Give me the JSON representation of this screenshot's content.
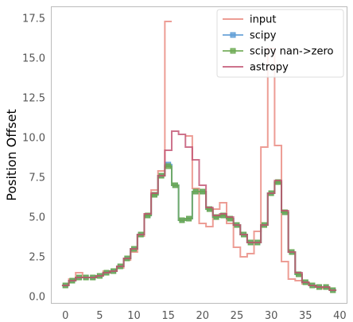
{
  "chart_data": {
    "type": "line",
    "drawstyle": "steps-mid",
    "title": "",
    "xlabel": "",
    "ylabel": "Position Offset",
    "xlim": [
      -2,
      41
    ],
    "ylim": [
      -0.4,
      18.2
    ],
    "xticks": [
      0,
      5,
      10,
      15,
      20,
      25,
      30,
      35,
      40
    ],
    "yticks": [
      0.0,
      2.5,
      5.0,
      7.5,
      10.0,
      12.5,
      15.0,
      17.5
    ],
    "xtick_labels": [
      "0",
      "5",
      "10",
      "15",
      "20",
      "25",
      "30",
      "35",
      "40"
    ],
    "ytick_labels": [
      "0.0",
      "2.5",
      "5.0",
      "7.5",
      "10.0",
      "12.5",
      "15.0",
      "17.5"
    ],
    "grid": false,
    "legend_position": "top-right",
    "series": [
      {
        "name": "input",
        "color": "#e8857a",
        "marker": "none",
        "x": [
          0,
          1,
          2,
          3,
          4,
          5,
          6,
          7,
          8,
          9,
          10,
          11,
          12,
          13,
          14,
          15,
          16,
          17,
          18,
          19,
          20,
          21,
          22,
          23,
          24,
          25,
          26,
          27,
          28,
          29,
          30,
          31,
          32,
          33,
          34,
          35,
          36,
          37,
          38,
          39
        ],
        "values": [
          0.7,
          1.1,
          1.5,
          1.2,
          1.2,
          1.3,
          1.6,
          1.6,
          1.8,
          2.3,
          2.8,
          3.8,
          5.2,
          6.7,
          7.9,
          17.3,
          null,
          null,
          10.1,
          6.8,
          4.6,
          4.4,
          5.5,
          5.9,
          4.6,
          3.1,
          2.5,
          2.7,
          4.1,
          9.4,
          15.6,
          9.5,
          2.2,
          1.1,
          1.0,
          0.8,
          0.7,
          0.6,
          0.5,
          null
        ]
      },
      {
        "name": "scipy",
        "color": "#5b9bd5",
        "marker": "square",
        "x": [
          0,
          1,
          2,
          3,
          4,
          5,
          6,
          7,
          8,
          9,
          10,
          11,
          12,
          13,
          14,
          15,
          16,
          17,
          18,
          19,
          20,
          21,
          22,
          23,
          24,
          25,
          26,
          27,
          28,
          29,
          30,
          31,
          32,
          33,
          34,
          35,
          36,
          37,
          38,
          39
        ],
        "values": [
          0.7,
          1.0,
          1.2,
          1.2,
          1.2,
          1.3,
          1.5,
          1.6,
          1.9,
          2.4,
          3.0,
          3.9,
          5.1,
          6.4,
          7.6,
          8.3,
          7.0,
          4.8,
          4.9,
          6.6,
          6.6,
          5.5,
          5.0,
          5.1,
          4.9,
          4.5,
          3.9,
          3.4,
          3.4,
          4.5,
          6.5,
          7.2,
          5.3,
          2.8,
          1.4,
          0.9,
          0.7,
          0.6,
          0.6,
          0.4
        ]
      },
      {
        "name": "scipy nan->zero",
        "color": "#6aa84f",
        "marker": "square",
        "x": [
          0,
          1,
          2,
          3,
          4,
          5,
          6,
          7,
          8,
          9,
          10,
          11,
          12,
          13,
          14,
          15,
          16,
          17,
          18,
          19,
          20,
          21,
          22,
          23,
          24,
          25,
          26,
          27,
          28,
          29,
          30,
          31,
          32,
          33,
          34,
          35,
          36,
          37,
          38,
          39
        ],
        "values": [
          0.7,
          1.0,
          1.2,
          1.2,
          1.2,
          1.3,
          1.5,
          1.6,
          1.9,
          2.4,
          3.0,
          3.9,
          5.1,
          6.4,
          7.6,
          8.2,
          7.0,
          4.8,
          4.9,
          6.6,
          6.6,
          5.5,
          5.0,
          5.1,
          4.9,
          4.5,
          3.9,
          3.4,
          3.4,
          4.5,
          6.5,
          7.2,
          5.3,
          2.8,
          1.4,
          0.9,
          0.7,
          0.6,
          0.6,
          0.4
        ]
      },
      {
        "name": "astropy",
        "color": "#c0506f",
        "marker": "none",
        "x": [
          0,
          1,
          2,
          3,
          4,
          5,
          6,
          7,
          8,
          9,
          10,
          11,
          12,
          13,
          14,
          15,
          16,
          17,
          18,
          19,
          20,
          21,
          22,
          23,
          24,
          25,
          26,
          27,
          28,
          29,
          30,
          31,
          32,
          33,
          34,
          35,
          36,
          37,
          38,
          39
        ],
        "values": [
          0.7,
          1.0,
          1.2,
          1.2,
          1.2,
          1.3,
          1.5,
          1.6,
          1.9,
          2.4,
          3.0,
          3.9,
          5.2,
          6.5,
          7.6,
          9.2,
          10.4,
          10.2,
          9.4,
          8.6,
          7.0,
          5.6,
          5.1,
          5.2,
          5.0,
          4.5,
          3.9,
          3.4,
          3.4,
          4.5,
          6.5,
          7.3,
          5.4,
          2.8,
          1.5,
          0.9,
          0.7,
          0.6,
          0.6,
          0.4
        ]
      }
    ]
  }
}
